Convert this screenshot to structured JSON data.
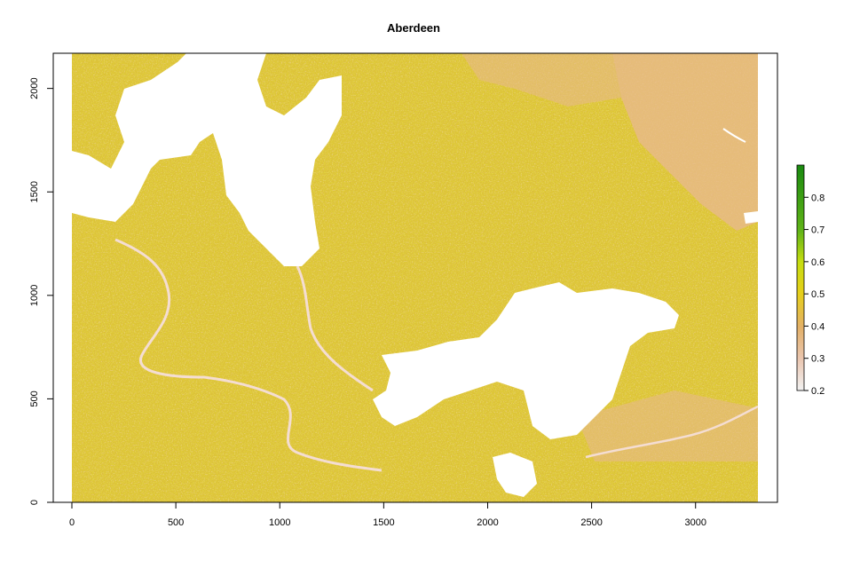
{
  "chart_data": {
    "type": "heatmap",
    "title": "Aberdeen",
    "xlabel": "",
    "ylabel": "",
    "xlim": [
      0,
      3300
    ],
    "ylim": [
      0,
      2170
    ],
    "x_ticks": [
      0,
      500,
      1000,
      1500,
      2000,
      2500,
      3000
    ],
    "y_ticks": [
      0,
      500,
      1000,
      1500,
      2000
    ],
    "x_tick_labels": [
      "0",
      "500",
      "1000",
      "1500",
      "2000",
      "2500",
      "3000"
    ],
    "y_tick_labels": [
      "0",
      "500",
      "1000",
      "1500",
      "2000"
    ],
    "colorbar": {
      "min": 0.2,
      "max": 0.9,
      "ticks": [
        0.2,
        0.3,
        0.4,
        0.5,
        0.6,
        0.7,
        0.8
      ],
      "tick_labels": [
        "0.2",
        "0.3",
        "0.4",
        "0.5",
        "0.6",
        "0.7",
        "0.8"
      ],
      "colors": [
        "#f2f2f2",
        "#eac6b0",
        "#e3b068",
        "#e6cf1a",
        "#c6dd10",
        "#60b418",
        "#1a8a10"
      ]
    },
    "grid": false,
    "no_data_regions": [
      "water bodies shown in white"
    ]
  }
}
